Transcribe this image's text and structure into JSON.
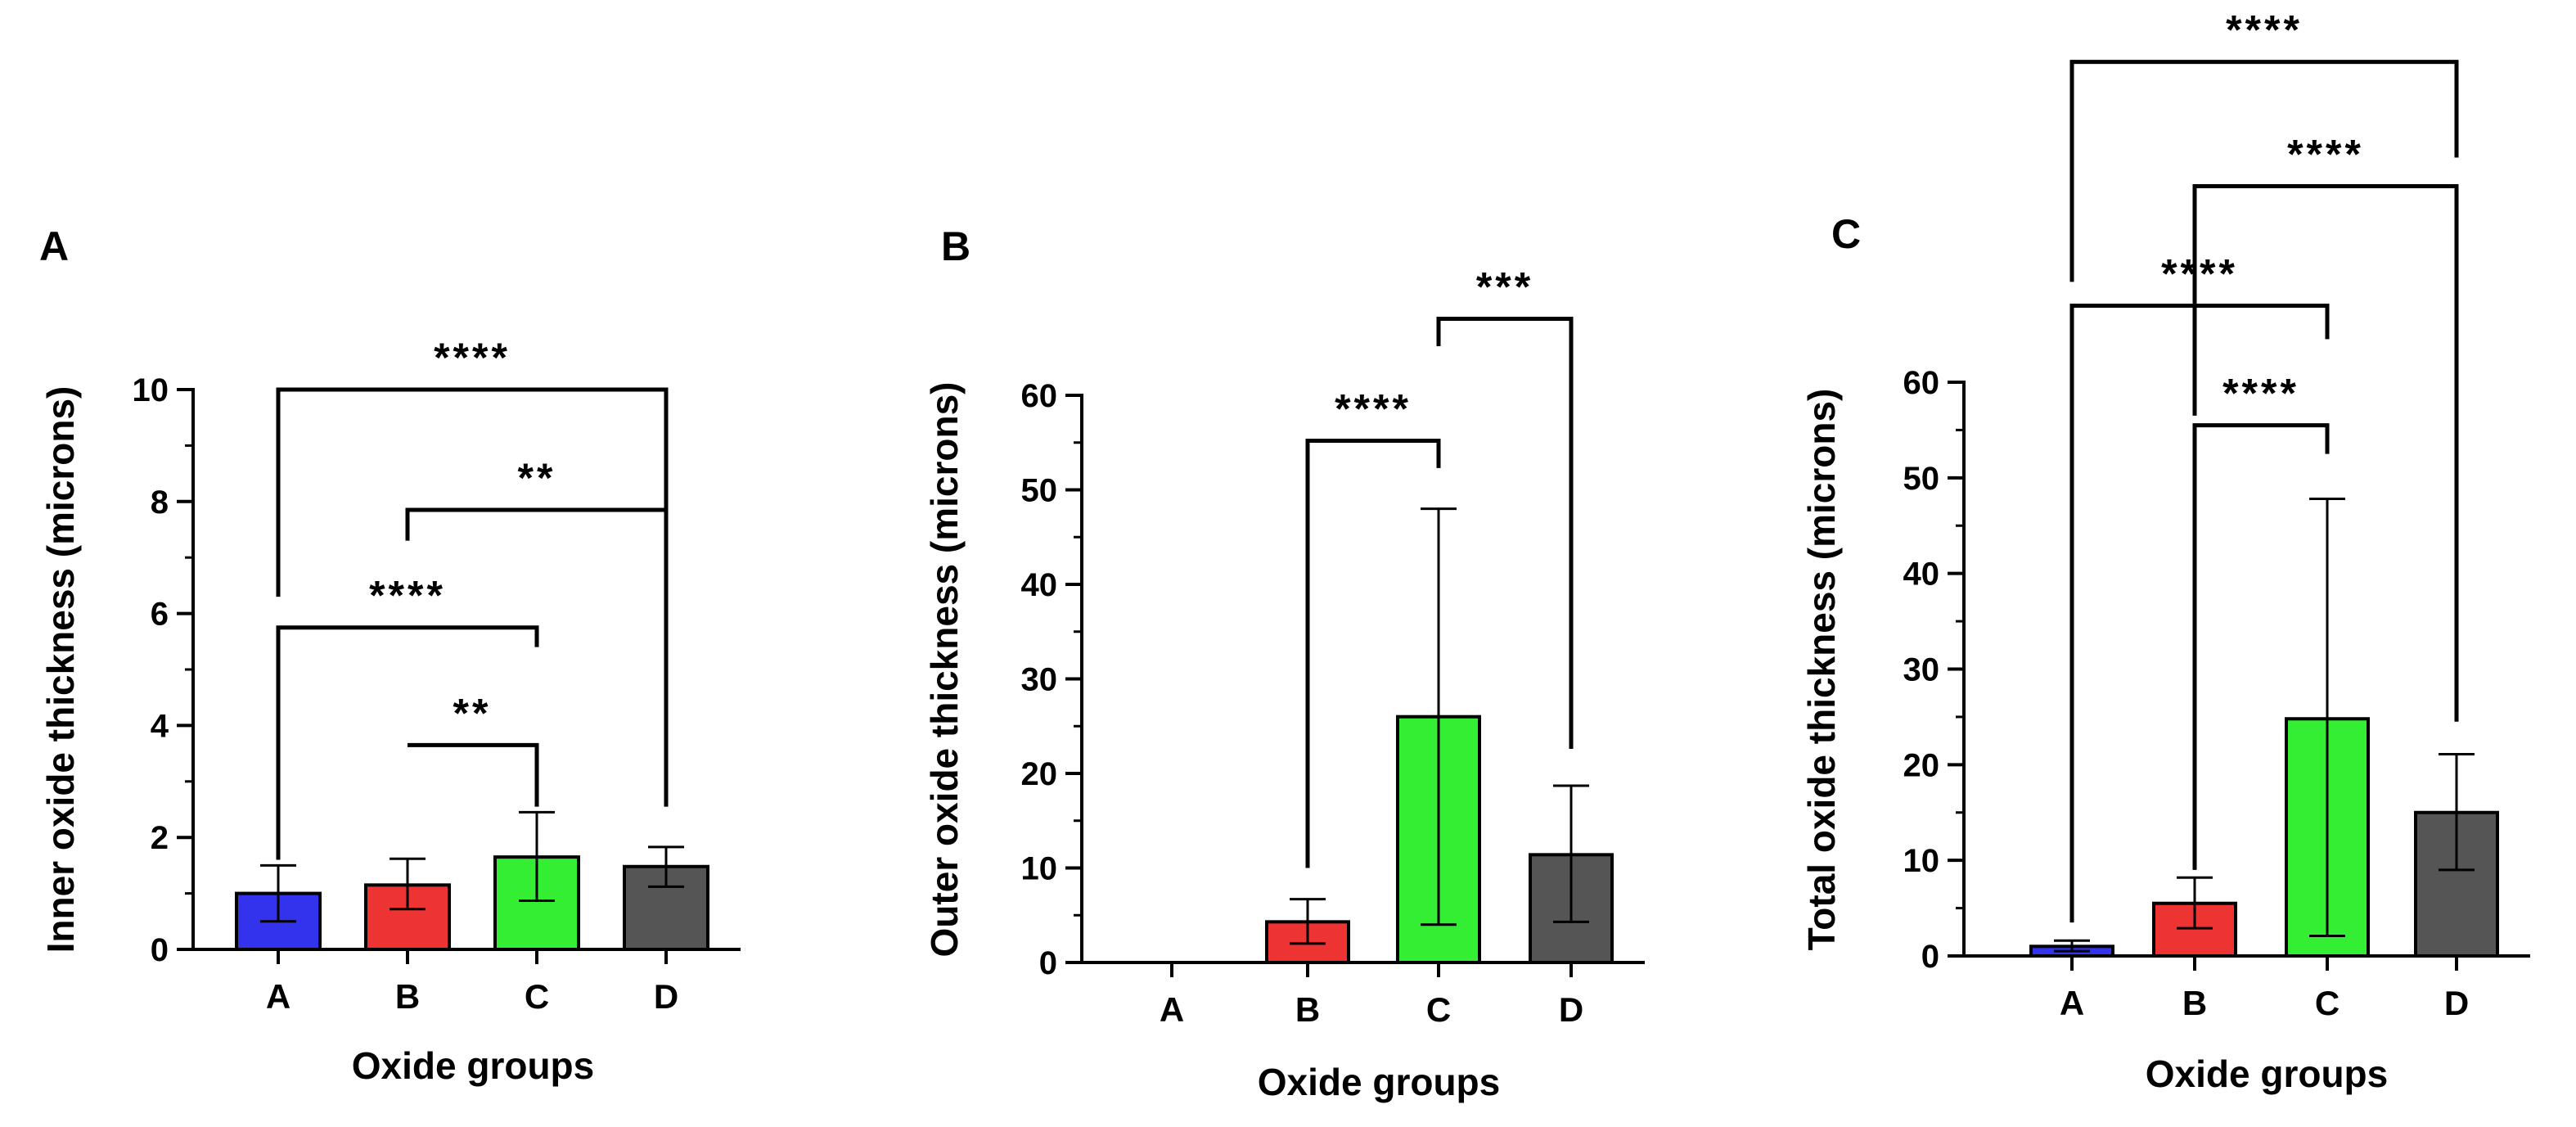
{
  "chart_data": [
    {
      "panel": "A",
      "type": "bar",
      "xlabel": "Oxide groups",
      "ylabel": "Inner oxide thickness (microns)",
      "categories": [
        "A",
        "B",
        "C",
        "D"
      ],
      "values": [
        1.0,
        1.15,
        1.65,
        1.48
      ],
      "errors": [
        [
          0.5,
          1.5
        ],
        [
          0.72,
          1.62
        ],
        [
          0.87,
          2.45
        ],
        [
          1.12,
          1.83
        ]
      ],
      "colors": [
        "#3333ee",
        "#ee3333",
        "#33ee33",
        "#555555"
      ],
      "ylim": [
        0,
        10
      ],
      "yticks": [
        0,
        2,
        4,
        6,
        8,
        10
      ],
      "ytick_labels": [
        "0",
        "2",
        "4",
        "6",
        "8",
        "10"
      ],
      "minor_step": 1,
      "significance": [
        {
          "from": 1,
          "to": 2,
          "label": "**",
          "y": 3.65,
          "left_drop": 3.65,
          "right_drop": 2.55
        },
        {
          "from": 0,
          "to": 2,
          "label": "****",
          "y": 5.75,
          "left_drop": 1.6,
          "right_drop": 5.4
        },
        {
          "from": 1,
          "to": 3,
          "label": "**",
          "y": 7.85,
          "left_drop": 7.3,
          "right_drop": 7.6
        },
        {
          "from": 0,
          "to": 3,
          "label": "****",
          "y": 10.0,
          "left_drop": 6.3,
          "right_drop": 2.55
        }
      ]
    },
    {
      "panel": "B",
      "type": "bar",
      "xlabel": "Oxide groups",
      "ylabel": "Outer oxide thickness (microns)",
      "categories": [
        "A",
        "B",
        "C",
        "D"
      ],
      "values": [
        0,
        4.3,
        26.0,
        11.4
      ],
      "errors": [
        null,
        [
          2.0,
          6.7
        ],
        [
          4.0,
          48.0
        ],
        [
          4.3,
          18.7
        ]
      ],
      "colors": [
        "#3333ee",
        "#ee3333",
        "#33ee33",
        "#555555"
      ],
      "ylim": [
        0,
        60
      ],
      "yticks": [
        0,
        10,
        20,
        30,
        40,
        50,
        60
      ],
      "ytick_labels": [
        "0",
        "10",
        "20",
        "30",
        "40",
        "50",
        "60"
      ],
      "minor_step": 5,
      "significance": [
        {
          "from": 1,
          "to": 2,
          "label": "****",
          "y": 55.2,
          "left_drop": 10.0,
          "right_drop": 52.3
        },
        {
          "from": 2,
          "to": 3,
          "label": "***",
          "y": 68.1,
          "left_drop": 65.2,
          "right_drop": 22.6
        }
      ]
    },
    {
      "panel": "C",
      "type": "bar",
      "xlabel": "Oxide groups",
      "ylabel": "Total oxide thickness (microns)",
      "categories": [
        "A",
        "B",
        "C",
        "D"
      ],
      "values": [
        1.0,
        5.5,
        24.8,
        15.0
      ],
      "errors": [
        [
          0.5,
          1.6
        ],
        [
          2.9,
          8.2
        ],
        [
          2.1,
          47.8
        ],
        [
          9.0,
          21.1
        ]
      ],
      "colors": [
        "#3333ee",
        "#ee3333",
        "#33ee33",
        "#555555"
      ],
      "ylim": [
        0,
        60
      ],
      "yticks": [
        0,
        10,
        20,
        30,
        40,
        50,
        60
      ],
      "ytick_labels": [
        "0",
        "10",
        "20",
        "30",
        "40",
        "50",
        "60"
      ],
      "minor_step": 5,
      "significance": [
        {
          "from": 1,
          "to": 2,
          "label": "****",
          "y": 55.5,
          "left_drop": 9.0,
          "right_drop": 52.5
        },
        {
          "from": 0,
          "to": 2,
          "label": "****",
          "y": 68.0,
          "left_drop": 3.5,
          "right_drop": 64.5
        },
        {
          "from": 1,
          "to": 3,
          "label": "****",
          "y": 80.5,
          "left_drop": 56.5,
          "right_drop": 24.5
        },
        {
          "from": 0,
          "to": 3,
          "label": "****",
          "y": 93.5,
          "left_drop": 70.5,
          "right_drop": 83.5
        }
      ]
    }
  ]
}
